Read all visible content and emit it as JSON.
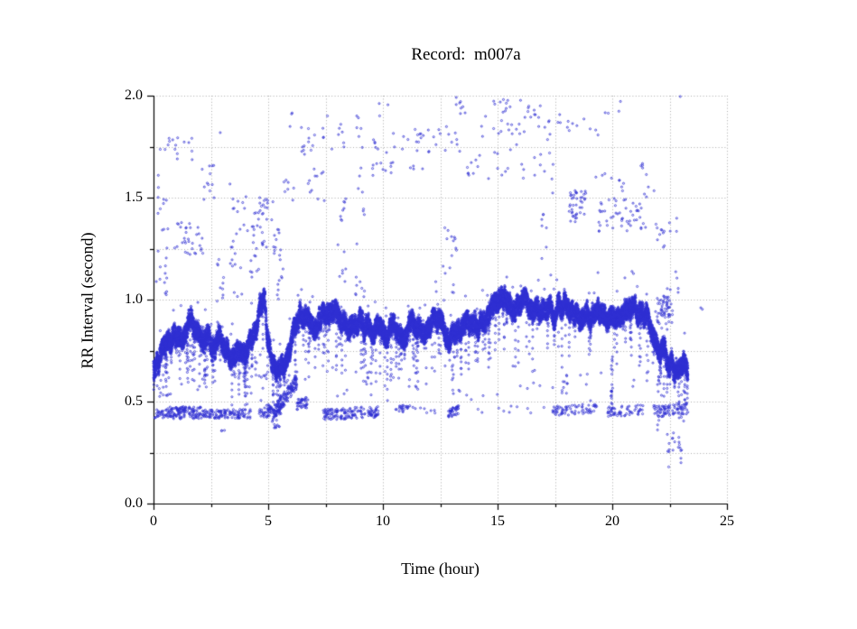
{
  "window": {
    "background": "#ffffff"
  },
  "chart_data": {
    "type": "scatter",
    "title": "Record:  m007a",
    "xlabel": "Time (hour)",
    "ylabel": "RR Interval (second)",
    "xlim": [
      0,
      25
    ],
    "ylim": [
      0.0,
      2.0
    ],
    "x_major_ticks": {
      "values": [
        0,
        5,
        10,
        15,
        20,
        25
      ],
      "labels": [
        "0",
        "5",
        "10",
        "15",
        "20",
        "25"
      ]
    },
    "x_minor_ticks": [
      2.5,
      7.5,
      12.5,
      17.5,
      22.5
    ],
    "y_major_ticks": {
      "values": [
        0,
        0.5,
        1,
        1.5,
        2
      ],
      "labels": [
        "0.0",
        "0.5",
        "1.0",
        "1.5",
        "2.0"
      ]
    },
    "y_minor_ticks": [
      0.25,
      0.75,
      1.25,
      1.75
    ],
    "grid": {
      "show": true,
      "style": "dotted",
      "color": "#ababab"
    },
    "axis_color": "#000000",
    "marker": {
      "shape": "open-circle",
      "radius_px": 1.05,
      "color": "#2e2ed2"
    },
    "series_name": "RR intervals",
    "time_range_hours": [
      0,
      23.3
    ],
    "seed": 20070,
    "main_band": {
      "step_hours": 0.0028,
      "half_width": 0.045,
      "wander": 0.05,
      "dip_chance": 0.02,
      "dip_depth_max": 0.3,
      "points_per_step": 2,
      "control_points": [
        [
          0.0,
          0.66
        ],
        [
          0.2,
          0.72
        ],
        [
          0.5,
          0.76
        ],
        [
          0.8,
          0.79
        ],
        [
          1.1,
          0.82
        ],
        [
          1.4,
          0.86
        ],
        [
          1.7,
          0.88
        ],
        [
          2.0,
          0.85
        ],
        [
          2.2,
          0.79
        ],
        [
          2.45,
          0.81
        ],
        [
          2.7,
          0.76
        ],
        [
          2.9,
          0.85
        ],
        [
          3.0,
          0.8
        ],
        [
          3.15,
          0.74
        ],
        [
          3.4,
          0.75
        ],
        [
          3.7,
          0.77
        ],
        [
          3.95,
          0.75
        ],
        [
          4.2,
          0.8
        ],
        [
          4.5,
          0.88
        ],
        [
          4.75,
          0.98
        ],
        [
          4.87,
          1.0
        ],
        [
          4.95,
          0.84
        ],
        [
          5.1,
          0.7
        ],
        [
          5.3,
          0.64
        ],
        [
          5.5,
          0.66
        ],
        [
          5.7,
          0.71
        ],
        [
          5.9,
          0.77
        ],
        [
          6.1,
          0.85
        ],
        [
          6.35,
          0.91
        ],
        [
          6.6,
          0.93
        ],
        [
          6.9,
          0.89
        ],
        [
          7.2,
          0.91
        ],
        [
          7.5,
          0.89
        ],
        [
          7.8,
          0.92
        ],
        [
          8.1,
          0.89
        ],
        [
          8.4,
          0.85
        ],
        [
          8.7,
          0.84
        ],
        [
          9.0,
          0.87
        ],
        [
          9.3,
          0.85
        ],
        [
          9.6,
          0.82
        ],
        [
          9.9,
          0.85
        ],
        [
          10.1,
          0.81
        ],
        [
          10.4,
          0.84
        ],
        [
          10.7,
          0.86
        ],
        [
          11.0,
          0.84
        ],
        [
          11.3,
          0.86
        ],
        [
          11.6,
          0.84
        ],
        [
          11.9,
          0.86
        ],
        [
          12.2,
          0.87
        ],
        [
          12.5,
          0.86
        ],
        [
          12.75,
          0.81
        ],
        [
          13.0,
          0.85
        ],
        [
          13.3,
          0.88
        ],
        [
          13.6,
          0.9
        ],
        [
          13.9,
          0.92
        ],
        [
          14.2,
          0.88
        ],
        [
          14.5,
          0.93
        ],
        [
          14.8,
          0.95
        ],
        [
          15.1,
          0.97
        ],
        [
          15.4,
          0.98
        ],
        [
          15.7,
          0.95
        ],
        [
          16.0,
          0.98
        ],
        [
          16.3,
          0.96
        ],
        [
          16.6,
          0.94
        ],
        [
          16.9,
          0.96
        ],
        [
          17.2,
          0.97
        ],
        [
          17.5,
          0.94
        ],
        [
          17.8,
          0.96
        ],
        [
          18.1,
          0.95
        ],
        [
          18.4,
          0.91
        ],
        [
          18.7,
          0.95
        ],
        [
          19.0,
          0.93
        ],
        [
          19.3,
          0.95
        ],
        [
          19.6,
          0.91
        ],
        [
          19.9,
          0.94
        ],
        [
          20.2,
          0.93
        ],
        [
          20.5,
          0.91
        ],
        [
          20.8,
          0.95
        ],
        [
          21.1,
          0.94
        ],
        [
          21.4,
          0.92
        ],
        [
          21.6,
          0.88
        ],
        [
          21.8,
          0.83
        ],
        [
          22.0,
          0.79
        ],
        [
          22.2,
          0.75
        ],
        [
          22.45,
          0.72
        ],
        [
          22.7,
          0.68
        ],
        [
          22.9,
          0.71
        ],
        [
          23.05,
          0.67
        ],
        [
          23.2,
          0.69
        ],
        [
          23.3,
          0.66
        ]
      ]
    },
    "lower_band_segments": [
      [
        0.05,
        0.55,
        0.44,
        0.44,
        0.02,
        25
      ],
      [
        0.55,
        2.2,
        0.445,
        0.445,
        0.03,
        140
      ],
      [
        2.2,
        4.25,
        0.44,
        0.44,
        0.022,
        120
      ],
      [
        4.6,
        5.15,
        0.44,
        0.46,
        0.03,
        45
      ],
      [
        5.15,
        6.25,
        0.43,
        0.6,
        0.035,
        160
      ],
      [
        6.25,
        6.7,
        0.48,
        0.5,
        0.03,
        40
      ],
      [
        7.4,
        9.8,
        0.435,
        0.45,
        0.028,
        150
      ],
      [
        10.5,
        11.1,
        0.46,
        0.47,
        0.02,
        20
      ],
      [
        11.1,
        12.7,
        0.46,
        0.46,
        0.02,
        10
      ],
      [
        12.85,
        13.3,
        0.44,
        0.46,
        0.022,
        40
      ],
      [
        13.4,
        17.2,
        0.46,
        0.46,
        0.02,
        10
      ],
      [
        17.4,
        19.4,
        0.455,
        0.465,
        0.025,
        70
      ],
      [
        19.8,
        21.35,
        0.45,
        0.46,
        0.025,
        55
      ],
      [
        21.8,
        23.3,
        0.45,
        0.47,
        0.03,
        80
      ],
      [
        22.4,
        23.1,
        0.3,
        0.3,
        0.05,
        12
      ]
    ],
    "scatter_clusters": [
      [
        0.15,
        0.65,
        1.18,
        1.62,
        14
      ],
      [
        0.25,
        1.7,
        1.68,
        1.8,
        16
      ],
      [
        0.9,
        2.15,
        1.22,
        1.38,
        32
      ],
      [
        1.9,
        2.65,
        1.48,
        1.66,
        12
      ],
      [
        0.1,
        0.6,
        1.02,
        1.18,
        10
      ],
      [
        2.75,
        3.1,
        0.95,
        1.2,
        10
      ],
      [
        2.8,
        3.0,
        1.8,
        1.84,
        1
      ],
      [
        3.3,
        4.15,
        1.42,
        1.62,
        9
      ],
      [
        3.35,
        4.6,
        1.0,
        1.38,
        26
      ],
      [
        4.3,
        5.35,
        1.22,
        1.5,
        38
      ],
      [
        5.35,
        5.65,
        0.88,
        1.35,
        14
      ],
      [
        5.6,
        6.15,
        1.48,
        1.62,
        7
      ],
      [
        5.8,
        6.05,
        1.84,
        1.93,
        3
      ],
      [
        6.2,
        7.55,
        1.7,
        1.88,
        15
      ],
      [
        6.3,
        7.45,
        1.48,
        1.66,
        11
      ],
      [
        7.5,
        7.65,
        1.9,
        1.94,
        1
      ],
      [
        7.75,
        8.35,
        1.72,
        1.86,
        7
      ],
      [
        8.0,
        8.4,
        1.05,
        1.5,
        15
      ],
      [
        8.8,
        9.2,
        1.0,
        1.55,
        14
      ],
      [
        8.85,
        9.15,
        1.55,
        1.92,
        8
      ],
      [
        9.4,
        10.45,
        1.58,
        1.8,
        17
      ],
      [
        9.7,
        9.9,
        1.9,
        1.97,
        2
      ],
      [
        10.15,
        10.3,
        1.9,
        1.96,
        1
      ],
      [
        10.45,
        12.45,
        1.64,
        1.84,
        24
      ],
      [
        12.6,
        13.25,
        1.02,
        1.36,
        16
      ],
      [
        12.4,
        13.5,
        1.7,
        1.86,
        9
      ],
      [
        13.05,
        13.2,
        1.95,
        2.0,
        2
      ],
      [
        13.3,
        13.85,
        1.9,
        2.0,
        6
      ],
      [
        13.6,
        14.25,
        1.58,
        1.73,
        9
      ],
      [
        14.3,
        16.55,
        1.8,
        1.98,
        28
      ],
      [
        14.6,
        16.3,
        1.58,
        1.78,
        12
      ],
      [
        15.0,
        16.0,
        1.96,
        2.0,
        3
      ],
      [
        16.5,
        17.4,
        1.78,
        1.95,
        11
      ],
      [
        16.6,
        17.5,
        1.52,
        1.74,
        9
      ],
      [
        16.9,
        17.2,
        1.18,
        1.42,
        7
      ],
      [
        17.6,
        19.9,
        1.8,
        1.95,
        14
      ],
      [
        18.1,
        18.85,
        1.38,
        1.54,
        42
      ],
      [
        19.4,
        21.45,
        1.33,
        1.5,
        48
      ],
      [
        19.2,
        20.5,
        1.52,
        1.62,
        9
      ],
      [
        20.2,
        20.4,
        1.92,
        1.98,
        2
      ],
      [
        21.0,
        21.95,
        1.4,
        1.68,
        11
      ],
      [
        21.9,
        22.85,
        1.25,
        1.45,
        14
      ],
      [
        22.2,
        23.05,
        1.0,
        1.2,
        7
      ],
      [
        22.85,
        23.05,
        1.96,
        2.0,
        1
      ],
      [
        21.95,
        22.65,
        0.88,
        1.02,
        55
      ],
      [
        23.8,
        23.95,
        0.94,
        0.98,
        2
      ],
      [
        19.92,
        20.02,
        0.45,
        0.73,
        22
      ],
      [
        21.97,
        22.1,
        0.3,
        0.75,
        20
      ],
      [
        22.42,
        22.55,
        0.15,
        0.32,
        4
      ],
      [
        22.92,
        23.05,
        0.2,
        0.33,
        4
      ],
      [
        17.8,
        18.05,
        0.54,
        0.63,
        10
      ],
      [
        4.35,
        4.95,
        0.6,
        0.73,
        12
      ],
      [
        13.0,
        13.15,
        0.6,
        0.72,
        6
      ],
      [
        9.25,
        9.45,
        0.58,
        0.66,
        5
      ],
      [
        0.15,
        0.35,
        0.52,
        0.62,
        5
      ],
      [
        5.25,
        5.55,
        0.36,
        0.4,
        8
      ],
      [
        2.95,
        3.1,
        0.35,
        0.36,
        3
      ]
    ],
    "sparse_mid_scatter": {
      "t": [
        0,
        23.3
      ],
      "rr": [
        0.5,
        0.68
      ],
      "n": 70
    }
  }
}
